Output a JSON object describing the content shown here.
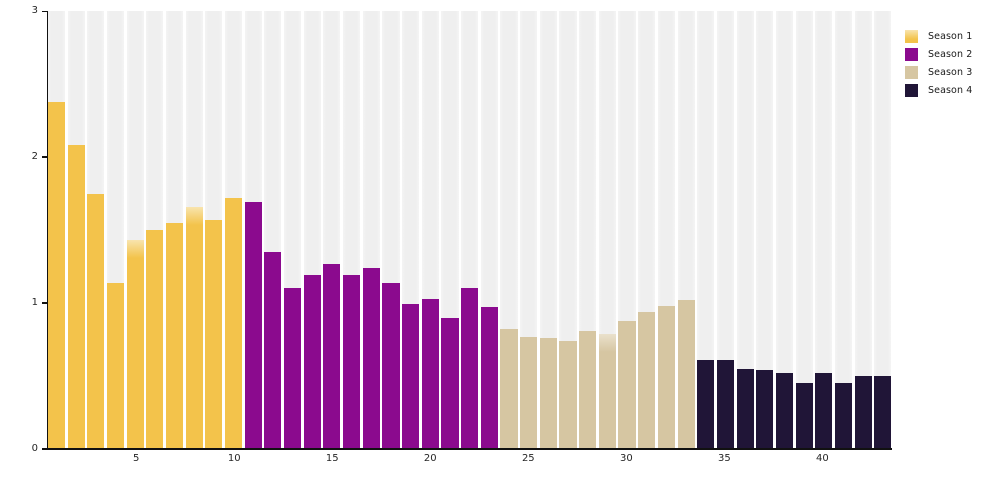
{
  "chart_data": {
    "type": "bar",
    "title": "",
    "xlabel": "",
    "ylabel": "",
    "ylim": [
      0,
      3
    ],
    "yticks": [
      0,
      1,
      2,
      3
    ],
    "xticks": [
      5,
      10,
      15,
      20,
      25,
      30,
      35,
      40
    ],
    "x_count": 43,
    "x": [
      1,
      2,
      3,
      4,
      5,
      6,
      7,
      8,
      9,
      10,
      11,
      12,
      13,
      14,
      15,
      16,
      17,
      18,
      19,
      20,
      21,
      22,
      23,
      24,
      25,
      26,
      27,
      28,
      29,
      30,
      31,
      32,
      33,
      34,
      35,
      36,
      37,
      38,
      39,
      40,
      41,
      42,
      43
    ],
    "series": [
      {
        "name": "Season 1",
        "color": "#F3C34B",
        "soft_top_color": "#F8E4AE",
        "episodes": [
          1,
          2,
          3,
          4,
          5,
          6,
          7,
          8,
          9,
          10
        ],
        "values": [
          2.38,
          2.08,
          1.75,
          1.14,
          1.43,
          1.5,
          1.55,
          1.66,
          1.57,
          1.72
        ]
      },
      {
        "name": "Season 2",
        "color": "#8B0A8E",
        "soft_top_color": "#C46AC6",
        "episodes": [
          11,
          12,
          13,
          14,
          15,
          16,
          17,
          18,
          19,
          20,
          21,
          22,
          23
        ],
        "values": [
          1.69,
          1.35,
          1.1,
          1.19,
          1.27,
          1.19,
          1.24,
          1.14,
          0.99,
          1.03,
          0.9,
          1.1,
          0.97
        ]
      },
      {
        "name": "Season 3",
        "color": "#D6C6A2",
        "soft_top_color": "#EAE1CC",
        "episodes": [
          24,
          25,
          26,
          27,
          28,
          29,
          30,
          31,
          32,
          33
        ],
        "values": [
          0.82,
          0.77,
          0.76,
          0.74,
          0.81,
          0.79,
          0.88,
          0.94,
          0.98,
          1.02
        ]
      },
      {
        "name": "Season 4",
        "color": "#201537",
        "soft_top_color": "#5A4E78",
        "episodes": [
          34,
          35,
          36,
          37,
          38,
          39,
          40,
          41,
          42,
          43
        ],
        "values": [
          0.61,
          0.61,
          0.55,
          0.54,
          0.52,
          0.45,
          0.52,
          0.45,
          0.5,
          0.5
        ]
      }
    ],
    "soft_top_episodes": [
      5,
      8,
      29
    ],
    "legend_position": "top-right",
    "grid": false,
    "background_columns_color": "#F0F0F0"
  },
  "axes": {
    "y_labels": [
      "3",
      "2",
      "1",
      "0"
    ],
    "x_labels": [
      "5",
      "10",
      "15",
      "20",
      "25",
      "30",
      "35",
      "40"
    ]
  },
  "legend": {
    "items": [
      {
        "label": "Season 1",
        "color": "#F3C34B",
        "soft_top": true
      },
      {
        "label": "Season 2",
        "color": "#8B0A8E",
        "soft_top": false
      },
      {
        "label": "Season 3",
        "color": "#D6C6A2",
        "soft_top": false
      },
      {
        "label": "Season 4",
        "color": "#201537",
        "soft_top": false
      }
    ]
  }
}
